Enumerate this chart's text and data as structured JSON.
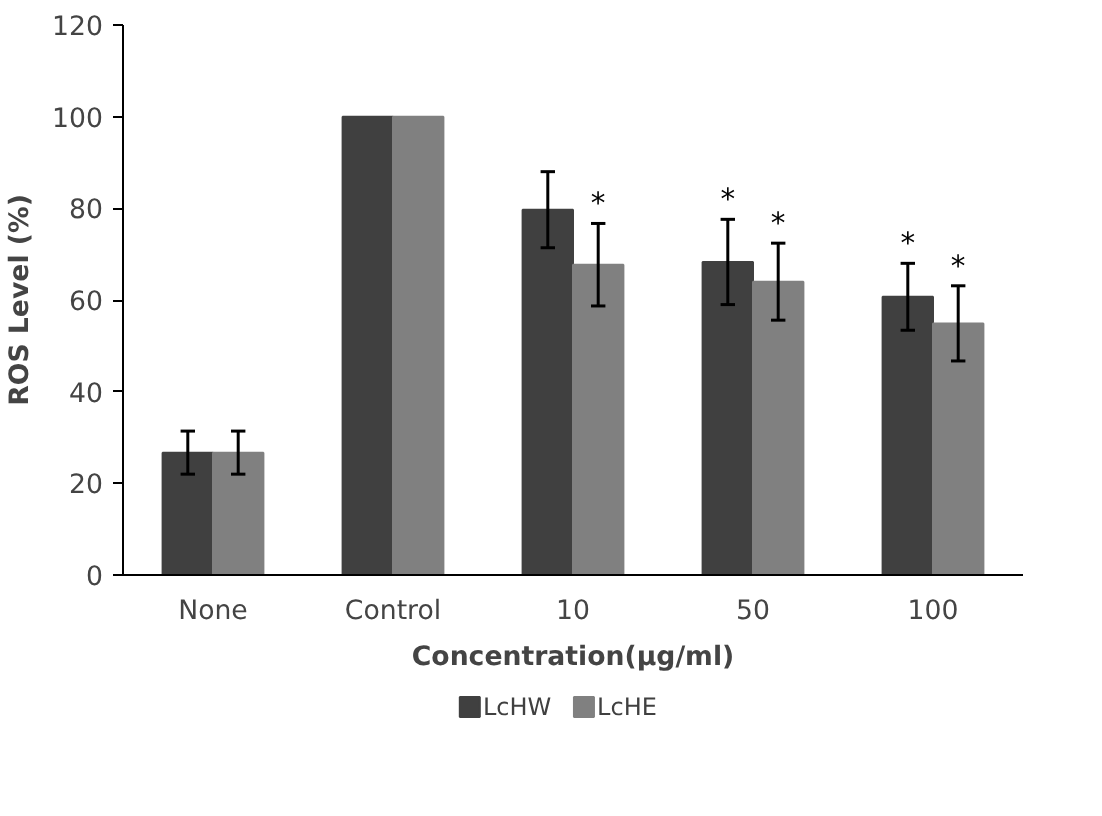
{
  "chart_data": {
    "type": "bar",
    "xlabel": "Concentration(μg/ml)",
    "ylabel": "ROS Level (%)",
    "categories": [
      "None",
      "Control",
      "10",
      "50",
      "100"
    ],
    "series": [
      {
        "name": "LcHW",
        "color": "#404040",
        "values": [
          26.7,
          100,
          79.7,
          68.3,
          60.7
        ],
        "errors": [
          4.7,
          null,
          8.3,
          9.3,
          7.3
        ],
        "value_labels": [
          null,
          null,
          null,
          "*",
          "*"
        ]
      },
      {
        "name": "LcHE",
        "color": "#808080",
        "values": [
          26.7,
          100,
          67.7,
          64,
          54.9
        ],
        "errors": [
          4.7,
          null,
          9,
          8.4,
          8.2
        ],
        "value_labels": [
          null,
          null,
          "*",
          "*",
          "*"
        ]
      }
    ],
    "ylim": [
      0,
      120
    ],
    "yticks": [
      0,
      20,
      40,
      60,
      80,
      100,
      120
    ],
    "grid": false,
    "legend": "bottom"
  }
}
